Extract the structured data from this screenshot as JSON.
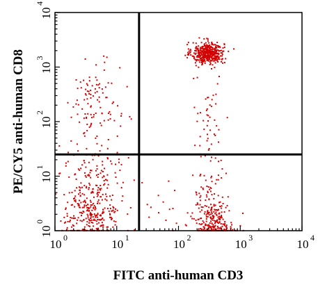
{
  "chart_data": {
    "type": "scatter",
    "xlabel": "FITC anti-human CD3",
    "ylabel": "PE/CY5 anti-human CD8",
    "x_scale": "log",
    "y_scale": "log",
    "xlim": [
      1,
      10000
    ],
    "ylim": [
      1,
      10000
    ],
    "x_ticks": [
      {
        "base": "10",
        "exp": "0",
        "value": 1
      },
      {
        "base": "10",
        "exp": "1",
        "value": 10
      },
      {
        "base": "10",
        "exp": "2",
        "value": 100
      },
      {
        "base": "10",
        "exp": "3",
        "value": 1000
      },
      {
        "base": "10",
        "exp": "4",
        "value": 10000
      }
    ],
    "y_ticks": [
      {
        "base": "10",
        "exp": "0",
        "value": 1
      },
      {
        "base": "10",
        "exp": "1",
        "value": 10
      },
      {
        "base": "10",
        "exp": "2",
        "value": 100
      },
      {
        "base": "10",
        "exp": "3",
        "value": 1000
      },
      {
        "base": "10",
        "exp": "4",
        "value": 10000
      }
    ],
    "gate_x": 23,
    "gate_y": 25,
    "grid": false,
    "legend": "none",
    "point_color": "#d40000",
    "frame_color": "#000000",
    "populations": [
      {
        "x_center": 300,
        "y_center": 1800,
        "x_spread_decades": 0.13,
        "y_spread_decades": 0.1,
        "count": 440
      },
      {
        "x_center": 380,
        "y_center": 1.3,
        "x_spread_decades": 0.16,
        "y_spread_decades": 0.2,
        "count": 250
      },
      {
        "x_center": 4,
        "y_center": 2.2,
        "x_spread_decades": 0.22,
        "y_spread_decades": 0.28,
        "count": 290
      },
      {
        "x_center": 4.5,
        "y_center": 200,
        "x_spread_decades": 0.2,
        "y_spread_decades": 0.38,
        "count": 110
      },
      {
        "x_center": 4,
        "y_center": 13,
        "x_spread_decades": 0.24,
        "y_spread_decades": 0.26,
        "count": 80
      },
      {
        "x_center": 320,
        "y_center": 6,
        "x_spread_decades": 0.14,
        "y_spread_decades": 0.35,
        "count": 70
      },
      {
        "x_center": 300,
        "y_center": 120,
        "x_spread_decades": 0.12,
        "y_spread_decades": 0.45,
        "count": 45
      },
      {
        "x_center": 60,
        "y_center": 3,
        "x_spread_decades": 0.35,
        "y_spread_decades": 0.4,
        "count": 20
      }
    ]
  }
}
